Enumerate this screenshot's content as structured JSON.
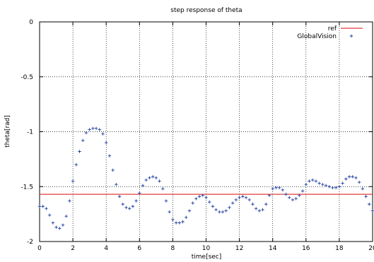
{
  "chart_data": {
    "type": "line",
    "title": "step response of theta",
    "xlabel": "time[sec]",
    "ylabel": "theta[rad]",
    "xlim": [
      0,
      20
    ],
    "ylim": [
      -2,
      0
    ],
    "grid": true,
    "legend_position": "top-right",
    "x_ticks": [
      0,
      2,
      4,
      6,
      8,
      10,
      12,
      14,
      16,
      18,
      20
    ],
    "x_tick_labels": [
      "0",
      "2",
      "4",
      "6",
      "8",
      "10",
      "12",
      "14",
      "16",
      "18",
      "20"
    ],
    "y_ticks": [
      0,
      -0.5,
      -1,
      -1.5,
      -2
    ],
    "y_tick_labels": [
      "0",
      "-0.5",
      "-1",
      "-1.5",
      "-2"
    ],
    "series": [
      {
        "name": "ref",
        "style": "line",
        "color": "#e33b3b",
        "x": [
          0,
          20
        ],
        "y": [
          -1.57,
          -1.57
        ]
      },
      {
        "name": "GlobalVision",
        "style": "points",
        "marker": "+",
        "color": "#1f3f9f",
        "x": [
          0,
          0.2,
          0.4,
          0.6,
          0.8,
          1.0,
          1.2,
          1.4,
          1.6,
          1.8,
          2.0,
          2.2,
          2.4,
          2.6,
          2.8,
          3.0,
          3.2,
          3.4,
          3.6,
          3.8,
          4.0,
          4.2,
          4.4,
          4.6,
          4.8,
          5.0,
          5.2,
          5.4,
          5.6,
          5.8,
          6.0,
          6.2,
          6.4,
          6.6,
          6.8,
          7.0,
          7.2,
          7.4,
          7.6,
          7.8,
          8.0,
          8.2,
          8.4,
          8.6,
          8.8,
          9.0,
          9.2,
          9.4,
          9.6,
          9.8,
          10.0,
          10.2,
          10.4,
          10.6,
          10.8,
          11.0,
          11.2,
          11.4,
          11.6,
          11.8,
          12.0,
          12.2,
          12.4,
          12.6,
          12.8,
          13.0,
          13.2,
          13.4,
          13.6,
          13.8,
          14.0,
          14.2,
          14.4,
          14.6,
          14.8,
          15.0,
          15.2,
          15.4,
          15.6,
          15.8,
          16.0,
          16.2,
          16.4,
          16.6,
          16.8,
          17.0,
          17.2,
          17.4,
          17.6,
          17.8,
          18.0,
          18.2,
          18.4,
          18.6,
          18.8,
          19.0,
          19.2,
          19.4,
          19.6,
          19.8,
          20.0
        ],
        "y": [
          -1.68,
          -1.68,
          -1.7,
          -1.76,
          -1.83,
          -1.87,
          -1.88,
          -1.85,
          -1.77,
          -1.63,
          -1.45,
          -1.3,
          -1.18,
          -1.08,
          -1.01,
          -0.98,
          -0.97,
          -0.97,
          -0.98,
          -1.02,
          -1.1,
          -1.22,
          -1.35,
          -1.48,
          -1.59,
          -1.66,
          -1.69,
          -1.7,
          -1.68,
          -1.63,
          -1.56,
          -1.49,
          -1.44,
          -1.42,
          -1.41,
          -1.42,
          -1.45,
          -1.52,
          -1.63,
          -1.73,
          -1.8,
          -1.83,
          -1.83,
          -1.82,
          -1.78,
          -1.72,
          -1.65,
          -1.61,
          -1.59,
          -1.58,
          -1.6,
          -1.64,
          -1.68,
          -1.71,
          -1.73,
          -1.73,
          -1.72,
          -1.69,
          -1.65,
          -1.62,
          -1.6,
          -1.59,
          -1.6,
          -1.62,
          -1.66,
          -1.7,
          -1.72,
          -1.71,
          -1.66,
          -1.58,
          -1.52,
          -1.51,
          -1.51,
          -1.53,
          -1.57,
          -1.6,
          -1.62,
          -1.61,
          -1.58,
          -1.54,
          -1.48,
          -1.45,
          -1.44,
          -1.45,
          -1.47,
          -1.48,
          -1.49,
          -1.5,
          -1.51,
          -1.51,
          -1.5,
          -1.47,
          -1.43,
          -1.41,
          -1.41,
          -1.42,
          -1.46,
          -1.52,
          -1.59,
          -1.66,
          -1.72
        ]
      }
    ]
  }
}
